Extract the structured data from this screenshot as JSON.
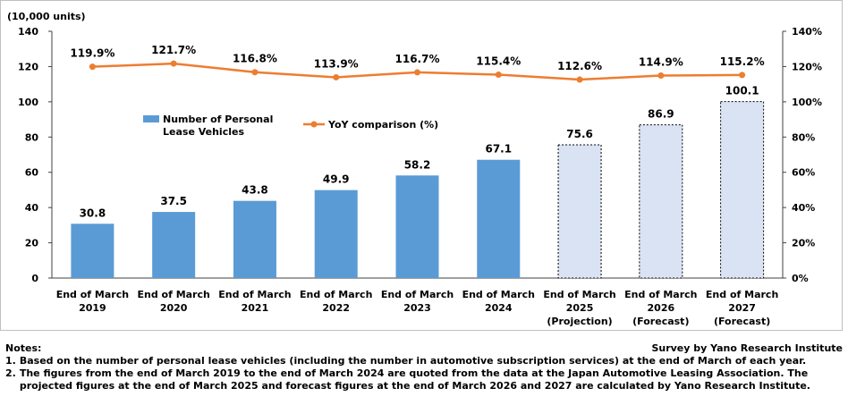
{
  "chart_data": {
    "type": "bar+line",
    "y_unit": "(10,000 units)",
    "categories": [
      [
        "End of March",
        "2019"
      ],
      [
        "End of March",
        "2020"
      ],
      [
        "End of March",
        "2021"
      ],
      [
        "End of March",
        "2022"
      ],
      [
        "End of March",
        "2023"
      ],
      [
        "End of March",
        "2024"
      ],
      [
        "End of March",
        "2025",
        "(Projection)"
      ],
      [
        "End of March",
        "2026",
        "(Forecast)"
      ],
      [
        "End of March",
        "2027",
        "(Forecast)"
      ]
    ],
    "bar_series": {
      "name": "Number of Personal Lease Vehicles",
      "values": [
        30.8,
        37.5,
        43.8,
        49.9,
        58.2,
        67.1,
        75.6,
        86.9,
        100.1
      ],
      "labels": [
        "30.8",
        "37.5",
        "43.8",
        "49.9",
        "58.2",
        "67.1",
        "75.6",
        "86.9",
        "100.1"
      ],
      "projected_from_index": 6,
      "color": "#5b9bd5",
      "projected_color": "#dae3f3"
    },
    "line_series": {
      "name": "YoY comparison (%)",
      "values": [
        119.9,
        121.7,
        116.8,
        113.9,
        116.7,
        115.4,
        112.6,
        114.9,
        115.2
      ],
      "labels": [
        "119.9%",
        "121.7%",
        "116.8%",
        "113.9%",
        "116.7%",
        "115.4%",
        "112.6%",
        "114.9%",
        "115.2%"
      ],
      "color": "#ed7d31"
    },
    "y_left": {
      "min": 0,
      "max": 140,
      "ticks": [
        0,
        20,
        40,
        60,
        80,
        100,
        120,
        140
      ]
    },
    "y_right": {
      "min": 0,
      "max": 140,
      "ticks": [
        0,
        20,
        40,
        60,
        80,
        100,
        120,
        140
      ],
      "tick_labels": [
        "0%",
        "20%",
        "40%",
        "60%",
        "80%",
        "100%",
        "120%",
        "140%"
      ]
    },
    "legend_position": "upper-left inside plot"
  },
  "notes": {
    "heading": "Notes:",
    "source": "Survey by Yano Research Institute",
    "items": [
      {
        "num": "1.",
        "text": "Based on the number of personal lease vehicles (including the number in automotive subscription services) at the end of March of each year."
      },
      {
        "num": "2.",
        "text": "The figures from the end of March 2019 to the end of March 2024 are quoted from the data at the Japan Automotive Leasing Association. The projected figures at the end of March 2025 and forecast figures at the end of March 2026 and 2027 are calculated by Yano Research Institute."
      }
    ]
  }
}
